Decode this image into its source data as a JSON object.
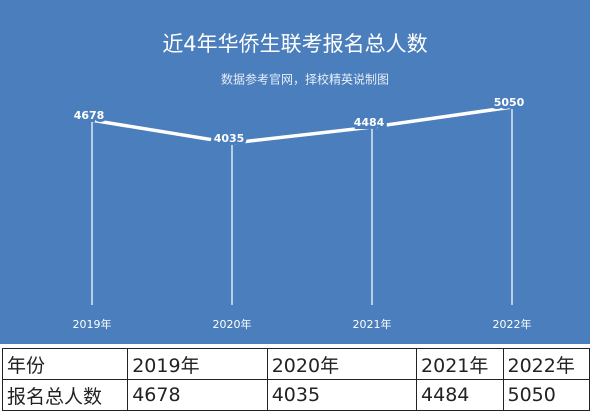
{
  "chart_data": {
    "type": "line",
    "title": "近4年华侨生联考报名总人数",
    "subtitle": "数据参考官网，择校精英说制图",
    "categories": [
      "2019年",
      "2020年",
      "2021年",
      "2022年"
    ],
    "series": [
      {
        "name": "报名总人数",
        "color": "#ffffff",
        "values": [
          4678,
          4035,
          4484,
          5050
        ]
      }
    ],
    "background": "#4a7ebd"
  },
  "table": {
    "rows": [
      [
        "年份",
        "2019年",
        "2020年",
        "2021年",
        "2022年"
      ],
      [
        "报名总人数",
        "4678",
        "4035",
        "4484",
        "5050"
      ]
    ]
  }
}
